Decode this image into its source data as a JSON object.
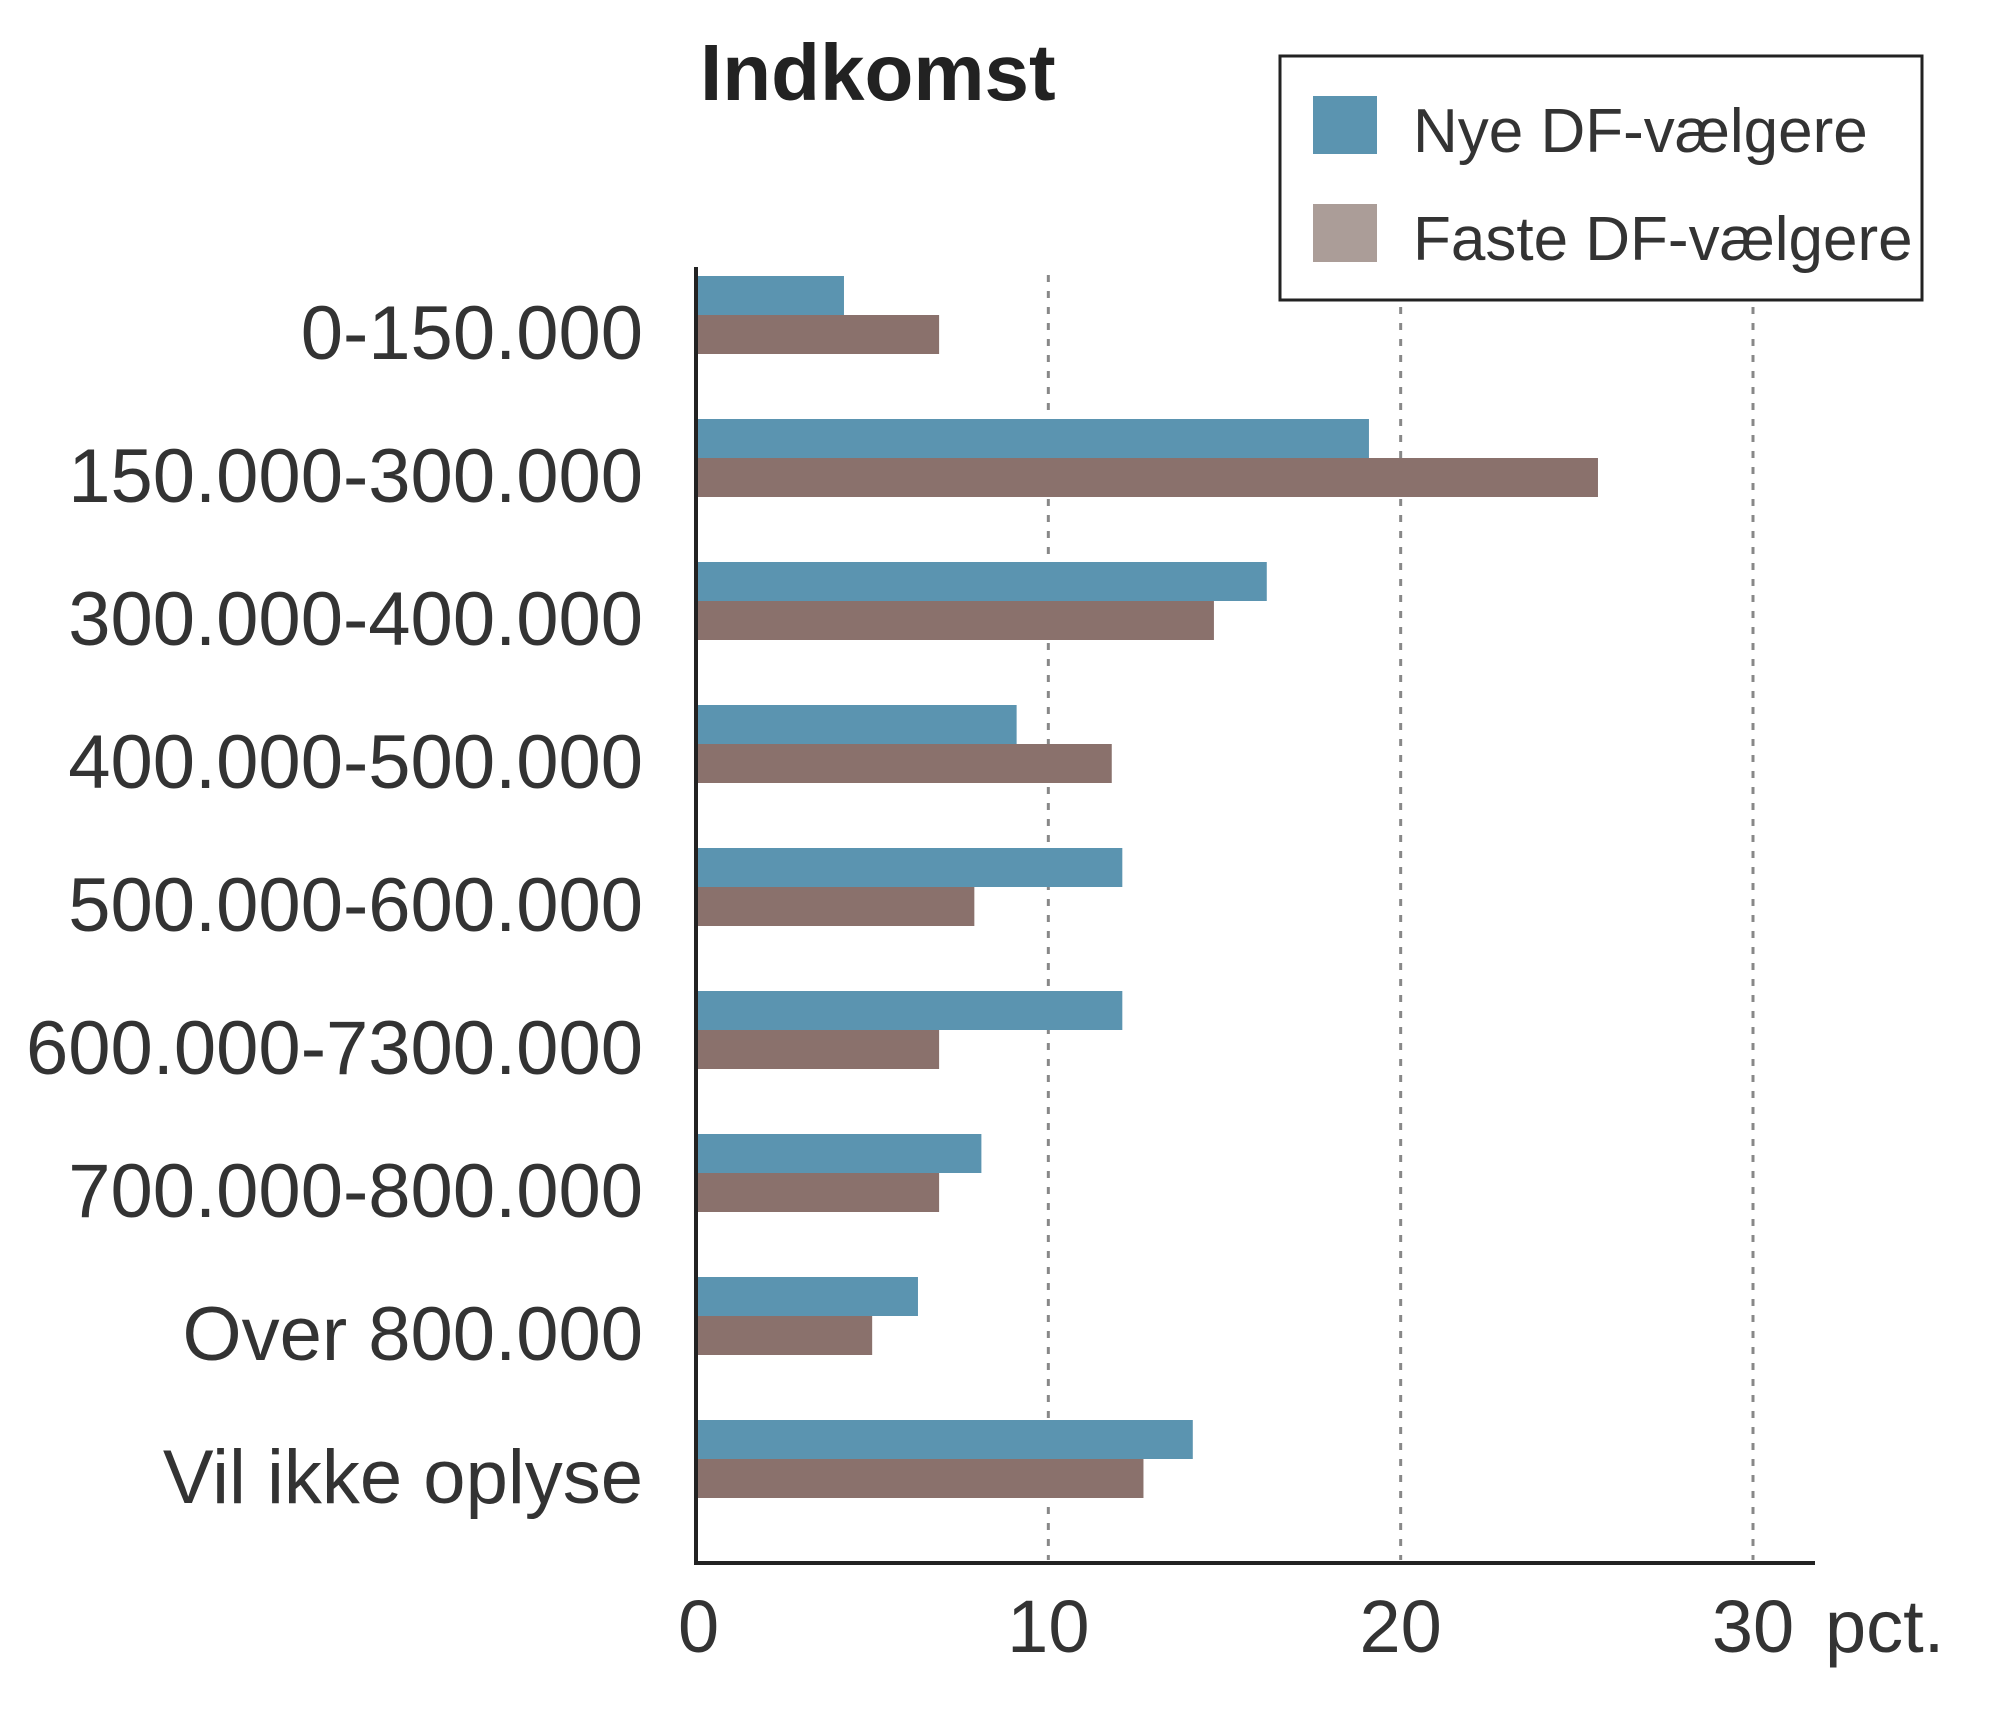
{
  "chart_data": {
    "type": "bar",
    "orientation": "horizontal",
    "title": "Indkomst",
    "xlabel": "",
    "ylabel": "",
    "unit_label": "pct.",
    "xlim": [
      0,
      30
    ],
    "xticks": [
      0,
      10,
      20,
      30
    ],
    "grid": "vertical dotted",
    "legend_position": "top-right",
    "categories": [
      "0-150.000",
      "150.000-300.000",
      "300.000-400.000",
      "400.000-500.000",
      "500.000-600.000",
      "600.000-7300.000",
      "700.000-800.000",
      "Over 800.000",
      "Vil ikke oplyse"
    ],
    "series": [
      {
        "name": "Nye DF-vælgere",
        "color": "#5b94b0",
        "legend_color": "#5b94b0",
        "values": [
          4.2,
          19.1,
          16.2,
          9.1,
          12.1,
          12.1,
          8.1,
          6.3,
          14.1
        ]
      },
      {
        "name": "Faste DF-vælgere",
        "color": "#8a716c",
        "legend_color": "#ab9d98",
        "values": [
          6.9,
          25.6,
          14.7,
          11.8,
          7.9,
          6.9,
          6.9,
          5.0,
          12.7
        ]
      }
    ]
  }
}
